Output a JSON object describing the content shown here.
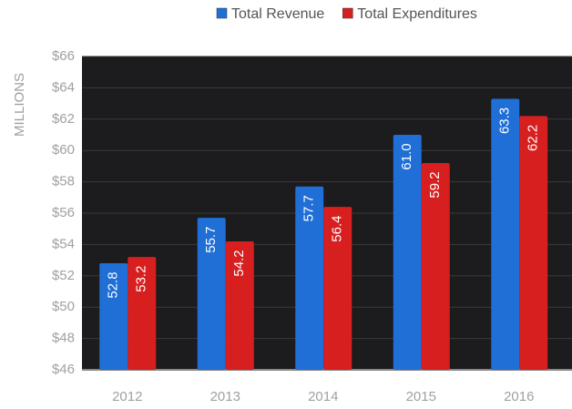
{
  "chart_data": {
    "type": "bar",
    "y_label": "MILLIONS",
    "categories": [
      "2012",
      "2013",
      "2014",
      "2015",
      "2016"
    ],
    "series": [
      {
        "name": "Total Revenue",
        "color": "#1f6fd6",
        "values": [
          52.8,
          55.7,
          57.7,
          61.0,
          63.3
        ],
        "value_labels": [
          "52.8",
          "55.7",
          "57.7",
          "61.0",
          "63.3"
        ]
      },
      {
        "name": "Total Expenditures",
        "color": "#d81f1f",
        "values": [
          53.2,
          54.2,
          56.4,
          59.2,
          62.2
        ],
        "value_labels": [
          "53.2",
          "54.2",
          "56.4",
          "59.2",
          "62.2"
        ]
      }
    ],
    "ylim": [
      46,
      66
    ],
    "yticks": [
      {
        "value": 46,
        "label": "$46"
      },
      {
        "value": 48,
        "label": "$48"
      },
      {
        "value": 50,
        "label": "$50"
      },
      {
        "value": 52,
        "label": "$52"
      },
      {
        "value": 54,
        "label": "$54"
      },
      {
        "value": 56,
        "label": "$56"
      },
      {
        "value": 58,
        "label": "$58"
      },
      {
        "value": 60,
        "label": "$60"
      },
      {
        "value": 62,
        "label": "$62"
      },
      {
        "value": 64,
        "label": "$64"
      },
      {
        "value": 66,
        "label": "$66"
      }
    ],
    "grid": true,
    "legend": "top"
  }
}
